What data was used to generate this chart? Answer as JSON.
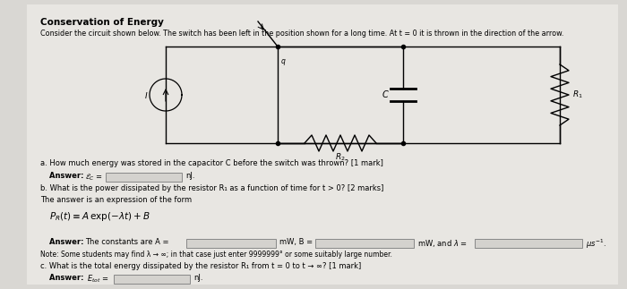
{
  "title": "Conservation of Energy",
  "subtitle": "Consider the circuit shown below. The switch has been left in the position shown for a long time. At t = 0 it is thrown in the direction of the arrow.",
  "bg_color": "#dddbd7",
  "question_a": "a. How much energy was stored in the capacitor C before the switch was thrown? [1 mark]",
  "question_b1": "b. What is the power dissipated by the resistor R₁ as a function of time for t > 0? [2 marks]",
  "question_b2": "The answer is an expression of the form",
  "note": "Note: Some students may find λ → ∞; in that case just enter 9999999° or some suitably large number.",
  "question_c": "c. What is the total energy dissipated by the resistor R₁ from t = 0 to t → ∞? [1 mark]"
}
